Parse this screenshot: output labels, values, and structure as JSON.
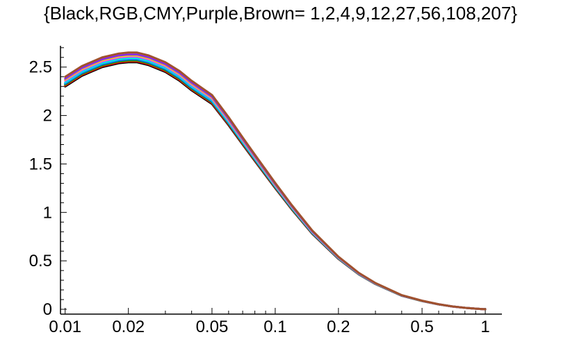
{
  "chart_data": {
    "type": "line",
    "title": "{Black,RGB,CMY,Purple,Brown= 1,2,4,9,12,27,56,108,207}",
    "xlabel": "",
    "ylabel": "",
    "xscale": "log",
    "xlim": [
      0.0095,
      1.2
    ],
    "ylim": [
      -0.05,
      2.72
    ],
    "grid": false,
    "x_ticks": [
      0.01,
      0.02,
      0.05,
      0.1,
      0.2,
      0.5,
      1
    ],
    "x_tick_labels": [
      "0.01",
      "0.02",
      "0.05",
      "0.1",
      "0.2",
      "0.5",
      "1"
    ],
    "y_ticks": [
      0,
      0.5,
      1,
      1.5,
      2,
      2.5
    ],
    "y_tick_labels": [
      "0",
      "0.5",
      "1",
      "1.5",
      "2",
      "2.5"
    ],
    "x": [
      0.01,
      0.012,
      0.015,
      0.018,
      0.02,
      0.022,
      0.025,
      0.03,
      0.035,
      0.04,
      0.05,
      0.06,
      0.07,
      0.08,
      0.1,
      0.12,
      0.15,
      0.2,
      0.25,
      0.3,
      0.4,
      0.5,
      0.6,
      0.7,
      0.8,
      0.9,
      1.0
    ],
    "base_values": [
      2.3,
      2.41,
      2.5,
      2.54,
      2.55,
      2.55,
      2.52,
      2.45,
      2.36,
      2.26,
      2.12,
      1.9,
      1.7,
      1.53,
      1.25,
      1.03,
      0.78,
      0.52,
      0.36,
      0.26,
      0.14,
      0.085,
      0.05,
      0.028,
      0.015,
      0.006,
      0.0
    ],
    "series": [
      {
        "color": "#000000",
        "offset": 0.0
      },
      {
        "color": "#ff0000",
        "offset": 0.01
      },
      {
        "color": "#00b000",
        "offset": 0.02
      },
      {
        "color": "#2050ff",
        "offset": 0.03
      },
      {
        "color": "#00e0e0",
        "offset": 0.04
      },
      {
        "color": "#ff30ff",
        "offset": 0.06
      },
      {
        "color": "#e8e800",
        "offset": 0.07
      },
      {
        "color": "#8a2be2",
        "offset": 0.08
      },
      {
        "color": "#a0522d",
        "offset": 0.1
      }
    ]
  }
}
